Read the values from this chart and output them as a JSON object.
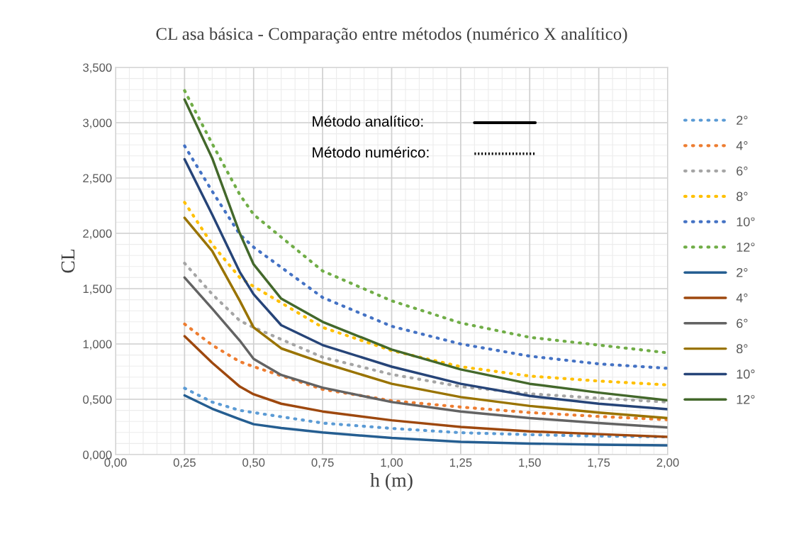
{
  "chart_data": {
    "type": "line",
    "title": "CL asa básica - Comparação entre métodos (numérico X analítico)",
    "xlabel": "h (m)",
    "ylabel": "CL",
    "x": [
      0.25,
      0.35,
      0.45,
      0.5,
      0.6,
      0.75,
      1.0,
      1.25,
      1.5,
      1.75,
      2.0
    ],
    "series": [
      {
        "name": "2°",
        "color": "#5b9bd5",
        "line_style": "dotted",
        "x": [
          0.25,
          0.35,
          0.45,
          0.5,
          0.75,
          1.0,
          1.25,
          1.5,
          1.75,
          2.0
        ],
        "values": [
          0.6,
          0.475,
          0.4,
          0.38,
          0.285,
          0.237,
          0.198,
          0.18,
          0.167,
          0.16
        ]
      },
      {
        "name": "4°",
        "color": "#ed7d31",
        "line_style": "dotted",
        "x": [
          0.25,
          0.35,
          0.45,
          0.5,
          0.75,
          1.0,
          1.25,
          1.5,
          1.75,
          2.0
        ],
        "values": [
          1.18,
          0.99,
          0.84,
          0.795,
          0.59,
          0.487,
          0.43,
          0.38,
          0.345,
          0.315
        ]
      },
      {
        "name": "6°",
        "color": "#a5a5a5",
        "line_style": "dotted",
        "x": [
          0.25,
          0.35,
          0.45,
          0.5,
          0.75,
          1.0,
          1.25,
          1.5,
          1.75,
          2.0
        ],
        "values": [
          1.73,
          1.45,
          1.21,
          1.15,
          0.88,
          0.725,
          0.615,
          0.55,
          0.51,
          0.475
        ]
      },
      {
        "name": "8°",
        "color": "#ffc000",
        "line_style": "dotted",
        "x": [
          0.25,
          0.35,
          0.45,
          0.5,
          0.75,
          1.0,
          1.25,
          1.5,
          1.75,
          2.0
        ],
        "values": [
          2.28,
          1.9,
          1.6,
          1.52,
          1.15,
          0.94,
          0.795,
          0.71,
          0.665,
          0.63
        ]
      },
      {
        "name": "10°",
        "color": "#4472c4",
        "line_style": "dotted",
        "x": [
          0.25,
          0.35,
          0.45,
          0.5,
          0.75,
          1.0,
          1.25,
          1.5,
          1.75,
          2.0
        ],
        "values": [
          2.79,
          2.38,
          1.99,
          1.875,
          1.42,
          1.16,
          1.0,
          0.89,
          0.82,
          0.78
        ]
      },
      {
        "name": "12°",
        "color": "#70ad47",
        "line_style": "dotted",
        "x": [
          0.25,
          0.35,
          0.45,
          0.5,
          0.75,
          1.0,
          1.25,
          1.5,
          1.75,
          2.0
        ],
        "values": [
          3.29,
          2.81,
          2.35,
          2.17,
          1.66,
          1.39,
          1.19,
          1.06,
          0.99,
          0.92
        ]
      },
      {
        "name": "2°",
        "color": "#255e91",
        "line_style": "solid",
        "values": [
          0.535,
          0.415,
          0.32,
          0.275,
          0.24,
          0.2,
          0.15,
          0.115,
          0.1,
          0.09,
          0.083
        ]
      },
      {
        "name": "4°",
        "color": "#9e480e",
        "line_style": "solid",
        "values": [
          1.07,
          0.83,
          0.615,
          0.545,
          0.46,
          0.39,
          0.31,
          0.25,
          0.21,
          0.185,
          0.16
        ]
      },
      {
        "name": "6°",
        "color": "#636363",
        "line_style": "solid",
        "values": [
          1.6,
          1.32,
          1.03,
          0.865,
          0.72,
          0.605,
          0.475,
          0.39,
          0.33,
          0.285,
          0.245
        ]
      },
      {
        "name": "8°",
        "color": "#997300",
        "line_style": "solid",
        "values": [
          2.14,
          1.84,
          1.39,
          1.15,
          0.96,
          0.83,
          0.64,
          0.52,
          0.44,
          0.38,
          0.33
        ]
      },
      {
        "name": "10°",
        "color": "#264478",
        "line_style": "solid",
        "values": [
          2.67,
          2.17,
          1.65,
          1.45,
          1.17,
          0.99,
          0.795,
          0.64,
          0.53,
          0.46,
          0.41
        ]
      },
      {
        "name": "12°",
        "color": "#43682b",
        "line_style": "solid",
        "values": [
          3.21,
          2.68,
          2.0,
          1.72,
          1.41,
          1.2,
          0.95,
          0.77,
          0.64,
          0.56,
          0.49
        ]
      }
    ],
    "xlim": [
      0,
      2.0
    ],
    "xticks": [
      {
        "value": 0,
        "label": "0,00"
      },
      {
        "value": 0.25,
        "label": "0,25"
      },
      {
        "value": 0.5,
        "label": "0,50"
      },
      {
        "value": 0.75,
        "label": "0,75"
      },
      {
        "value": 1.0,
        "label": "1,00"
      },
      {
        "value": 1.25,
        "label": "1,25"
      },
      {
        "value": 1.5,
        "label": "1,50"
      },
      {
        "value": 1.75,
        "label": "1,75"
      },
      {
        "value": 2.0,
        "label": "2,00"
      }
    ],
    "ylim": [
      0,
      3.5
    ],
    "yticks": [
      {
        "value": 0,
        "label": "0,000"
      },
      {
        "value": 0.5,
        "label": "0,500"
      },
      {
        "value": 1.0,
        "label": "1,000"
      },
      {
        "value": 1.5,
        "label": "1,500"
      },
      {
        "value": 2.0,
        "label": "2,000"
      },
      {
        "value": 2.5,
        "label": "2,500"
      },
      {
        "value": 3.0,
        "label": "3,000"
      },
      {
        "value": 3.5,
        "label": "3,500"
      }
    ],
    "annotations": [
      "Método analítico:",
      "Método numérico:"
    ],
    "grid": true,
    "legend": "right",
    "marker": "none"
  }
}
